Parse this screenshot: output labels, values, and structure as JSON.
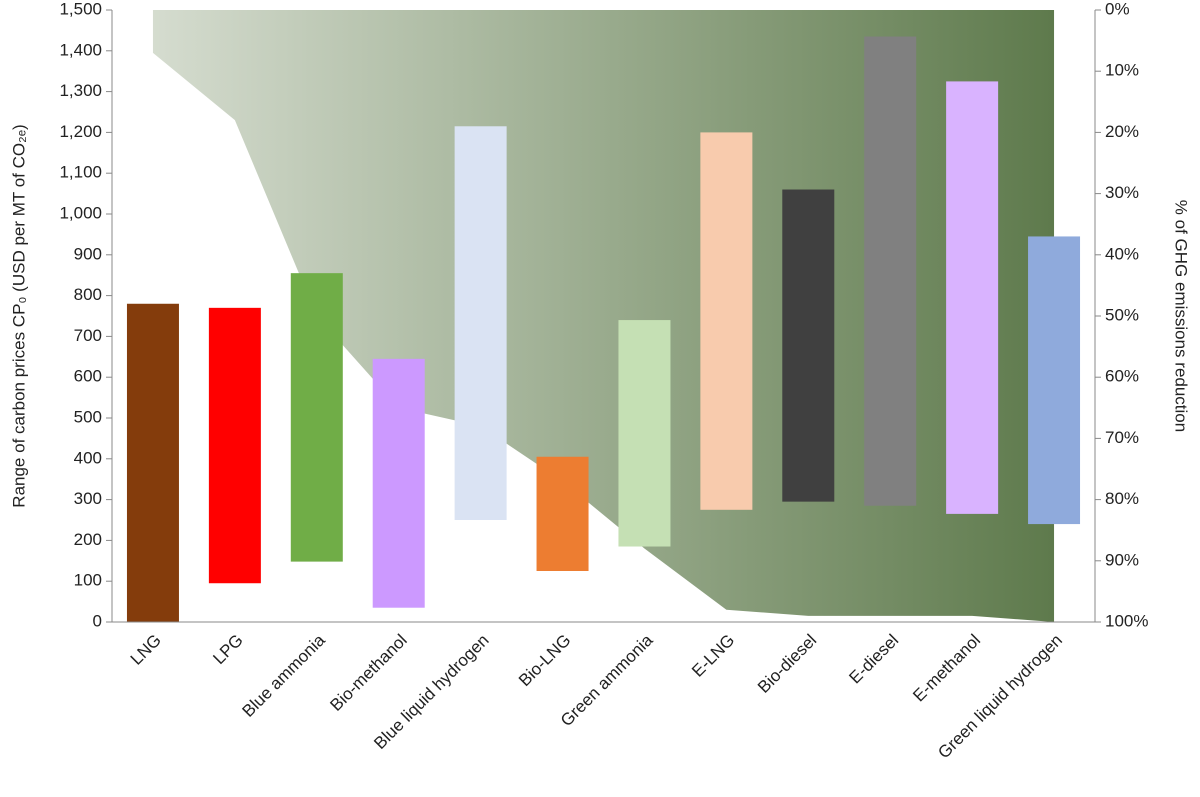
{
  "chart_data": {
    "type": "floating-bar",
    "y_label": "Range of carbon prices CP₀ (USD per MT of CO₂ₑ)",
    "y2_label": "% of GHG emissions reduction",
    "categories": [
      "LNG",
      "LPG",
      "Blue ammonia",
      "Bio-methanol",
      "Blue liquid hydrogen",
      "Bio-LNG",
      "Green ammonia",
      "E-LNG",
      "Bio-diesel",
      "E-diesel",
      "E-methanol",
      "Green liquid hydrogen"
    ],
    "low": [
      0,
      95,
      148,
      35,
      250,
      125,
      185,
      275,
      295,
      285,
      265,
      240
    ],
    "high": [
      780,
      770,
      855,
      645,
      1215,
      405,
      740,
      1200,
      1060,
      1435,
      1325,
      945
    ],
    "colors": [
      "#843c0c",
      "#ff0000",
      "#70ad47",
      "#cc99ff",
      "#dae3f3",
      "#ed7d31",
      "#c5e0b4",
      "#f8cbad",
      "#404040",
      "#808080",
      "#d9b3ff",
      "#8faadc"
    ],
    "area": {
      "values": [
        7,
        18,
        50,
        65,
        68,
        77,
        88,
        98,
        99,
        99,
        99,
        100
      ],
      "axis": "y2",
      "color_start": "#d5dccf",
      "color_end": "#5e7a4c"
    },
    "ylim": [
      0,
      1500
    ],
    "yticks": [
      0,
      100,
      200,
      300,
      400,
      500,
      600,
      700,
      800,
      900,
      {
        "value": 1000,
        "label": "1,000"
      },
      {
        "value": 1100,
        "label": "1,100"
      },
      {
        "value": 1200,
        "label": "1,200"
      },
      {
        "value": 1300,
        "label": "1,300"
      },
      {
        "value": 1400,
        "label": "1,400"
      },
      {
        "value": 1500,
        "label": "1,500"
      }
    ],
    "y2lim": [
      0,
      100
    ],
    "y2ticks": [
      {
        "value": 0,
        "label": "0%"
      },
      {
        "value": 10,
        "label": "10%"
      },
      {
        "value": 20,
        "label": "20%"
      },
      {
        "value": 30,
        "label": "30%"
      },
      {
        "value": 40,
        "label": "40%"
      },
      {
        "value": 50,
        "label": "50%"
      },
      {
        "value": 60,
        "label": "60%"
      },
      {
        "value": 70,
        "label": "70%"
      },
      {
        "value": 80,
        "label": "80%"
      },
      {
        "value": 90,
        "label": "90%"
      },
      {
        "value": 100,
        "label": "100%"
      }
    ],
    "y2_inverted": true
  }
}
